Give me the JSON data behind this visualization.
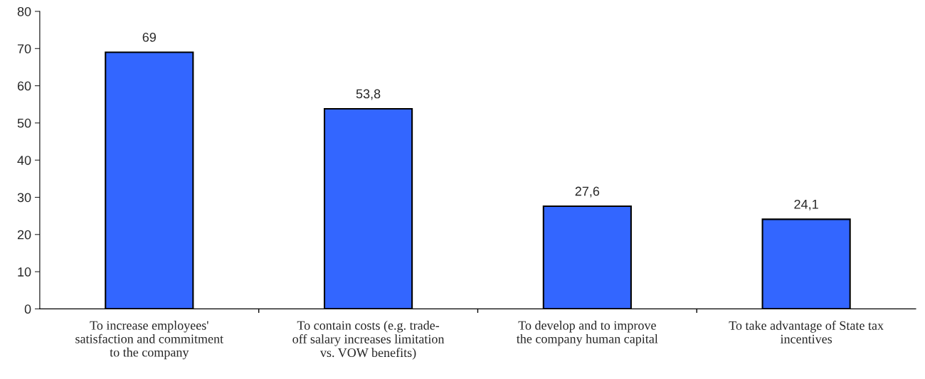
{
  "chart_data": {
    "type": "bar",
    "categories": [
      "To increase employees'\nsatisfaction and commitment\nto the company",
      "To contain costs (e.g. trade-\noff salary increases limitation\nvs. VOW benefits)",
      "To develop and to improve\nthe company human capital",
      "To take advantage of State tax\nincentives"
    ],
    "values": [
      69,
      53.8,
      27.6,
      24.1
    ],
    "value_labels": [
      "69",
      "53,8",
      "27,6",
      "24,1"
    ],
    "color": "#3366ff",
    "ylim": [
      0,
      80
    ],
    "yticks": [
      0,
      10,
      20,
      30,
      40,
      50,
      60,
      70,
      80
    ],
    "grid": false
  }
}
